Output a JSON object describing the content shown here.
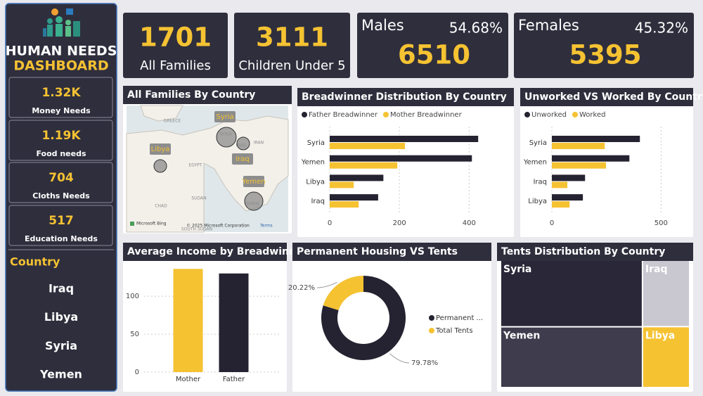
{
  "header": {
    "title_line1": "HUMAN NEEDS",
    "title_line2": "DASHBOARD"
  },
  "needs": [
    {
      "value": "1.32K",
      "label": "Money Needs"
    },
    {
      "value": "1.19K",
      "label": "Food needs"
    },
    {
      "value": "704",
      "label": "Cloths Needs"
    },
    {
      "value": "517",
      "label": "Education Needs"
    }
  ],
  "slicer": {
    "title": "Country",
    "items": [
      "Iraq",
      "Libya",
      "Syria",
      "Yemen"
    ]
  },
  "kpis": [
    {
      "value": 1701,
      "label": "All Families"
    },
    {
      "value": 3111,
      "label": "Children Under 5"
    }
  ],
  "gender": [
    {
      "label": "Males",
      "share": "54.68%",
      "value": 6510
    },
    {
      "label": "Females",
      "share": "45.32%",
      "value": 5395
    }
  ],
  "map": {
    "title": "All Families By Country",
    "bubble_labels": [
      "Syria",
      "Libya",
      "Iraq",
      "Yemen"
    ],
    "place_labels": [
      "GREECE",
      "SYRIA",
      "IRAQ",
      "IRAN",
      "EGYPT",
      "SUDAN",
      "CHAD",
      "YEMEN",
      "SOUTH SUDAN"
    ],
    "brand": "Microsoft Bing",
    "credits": "© 2025 Microsoft Corporation",
    "terms": "Terms"
  },
  "chart_data": [
    {
      "type": "hbar",
      "title": "Breadwinner Distribution By Country",
      "categories": [
        "Syria",
        "Yemen",
        "Libya",
        "Iraq"
      ],
      "series": [
        {
          "name": "Father Breadwinner",
          "color": "#252331",
          "values": [
            426,
            408,
            154,
            139
          ]
        },
        {
          "name": "Mother Breadwinner",
          "color": "#f5c232",
          "values": [
            216,
            194,
            69,
            83
          ]
        }
      ],
      "xlim": [
        0,
        470
      ],
      "xticks": [
        0,
        200,
        400
      ],
      "grid": true
    },
    {
      "type": "hbar",
      "title": "Unworked VS Worked By Country",
      "categories": [
        "Syria",
        "Yemen",
        "Iraq",
        "Libya"
      ],
      "series": [
        {
          "name": "Unworked",
          "color": "#252331",
          "values": [
            403,
            355,
            152,
            142
          ]
        },
        {
          "name": "Worked",
          "color": "#f5c232",
          "values": [
            242,
            248,
            71,
            81
          ]
        }
      ],
      "xlim": [
        0,
        560
      ],
      "xticks": [
        0,
        500
      ],
      "grid": true
    },
    {
      "type": "bar",
      "title": "Average Income by Breadwinner",
      "categories": [
        "Mother",
        "Father"
      ],
      "values": [
        136,
        130
      ],
      "colors": [
        "#f5c232",
        "#252331"
      ],
      "ylim": [
        0,
        140
      ],
      "yticks": [
        0,
        50,
        100
      ],
      "grid": true
    },
    {
      "type": "donut",
      "title": "Permanent Housing VS Tents",
      "categories": [
        "Permanent ...",
        "Total Tents"
      ],
      "values": [
        79.78,
        20.22
      ],
      "value_labels": [
        "79.78%",
        "20.22%"
      ],
      "colors": [
        "#252331",
        "#f5c232"
      ]
    },
    {
      "type": "treemap",
      "title": "Tents Distribution By Country",
      "categories": [
        "Syria",
        "Iraq",
        "Yemen",
        "Libya"
      ],
      "values": [
        184,
        61,
        168,
        56
      ],
      "colors": [
        "#2a2838",
        "#c9c7d0",
        "#3f3c4e",
        "#f5c232"
      ],
      "label_colors": [
        "#ffffff",
        "#ffffff",
        "#ffffff",
        "#ffffff"
      ]
    }
  ]
}
